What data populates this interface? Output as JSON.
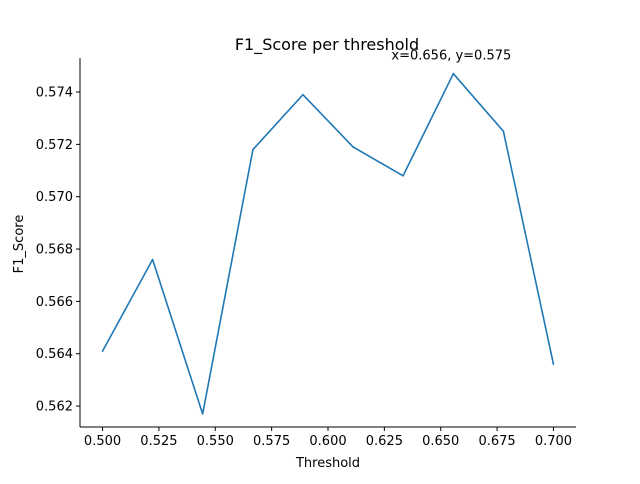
{
  "chart_data": {
    "type": "line",
    "title": "F1_Score per threshold",
    "xlabel": "Threshold",
    "ylabel": "F1_Score",
    "x": [
      0.5,
      0.5222,
      0.5444,
      0.5667,
      0.5889,
      0.6111,
      0.6333,
      0.6556,
      0.6778,
      0.7
    ],
    "series": [
      {
        "values": [
          0.5641,
          0.5676,
          0.5617,
          0.5718,
          0.5739,
          0.5719,
          0.5708,
          0.5747,
          0.5725,
          0.5636
        ]
      }
    ],
    "xlim": [
      0.49,
      0.71
    ],
    "ylim": [
      0.5612,
      0.5753
    ],
    "xticks": [
      "0.500",
      "0.525",
      "0.550",
      "0.575",
      "0.600",
      "0.625",
      "0.650",
      "0.675",
      "0.700"
    ],
    "yticks": [
      "0.562",
      "0.564",
      "0.566",
      "0.568",
      "0.570",
      "0.572",
      "0.574"
    ],
    "annotation": {
      "text": "x=0.656, y=0.575",
      "x": 0.6556,
      "y": 0.5747
    },
    "grid": false,
    "legend": "none",
    "line_color": "#1f77b4",
    "spines": "left-bottom"
  }
}
